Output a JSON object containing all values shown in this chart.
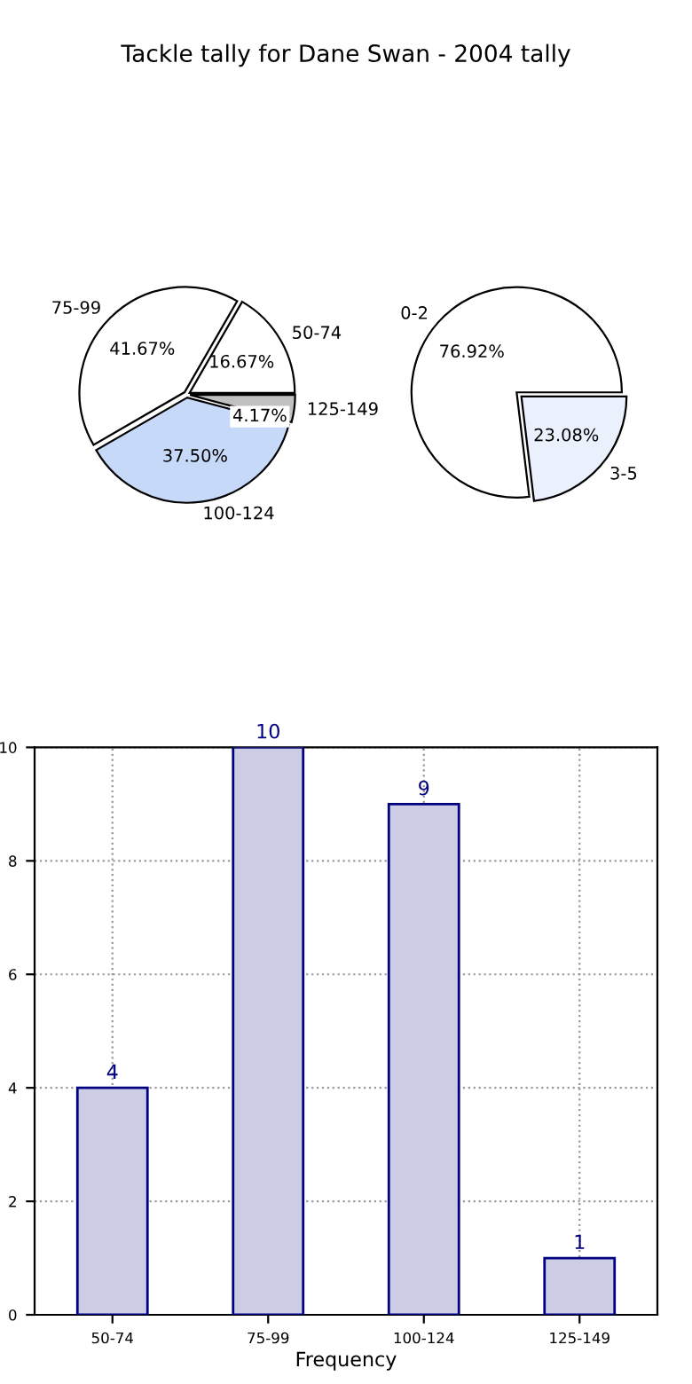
{
  "chart_data": [
    {
      "type": "pie",
      "title": "Tackle tally for Dane Swan - 2004 tally",
      "categories": [
        "50-74",
        "75-99",
        "100-124",
        "125-149"
      ],
      "values": [
        16.67,
        41.67,
        37.5,
        4.17
      ],
      "value_labels": [
        "16.67%",
        "41.67%",
        "37.50%",
        "4.17%"
      ],
      "colors": [
        "#ffffff",
        "#ffffff",
        "#c6d9f8",
        "#c0c0c0"
      ]
    },
    {
      "type": "pie",
      "categories": [
        "0-2",
        "3-5"
      ],
      "values": [
        76.92,
        23.08
      ],
      "value_labels": [
        "76.92%",
        "23.08%"
      ],
      "colors": [
        "#ffffff",
        "#eaf0fc"
      ]
    },
    {
      "type": "bar",
      "categories": [
        "50-74",
        "75-99",
        "100-124",
        "125-149"
      ],
      "values": [
        4,
        10,
        9,
        1
      ],
      "color": "#cccce4",
      "xlabel": "Frequency",
      "ylim": [
        0,
        10
      ],
      "yticks": [
        0,
        2,
        4,
        6,
        8,
        10
      ],
      "grid": true,
      "data_labels": true
    }
  ]
}
